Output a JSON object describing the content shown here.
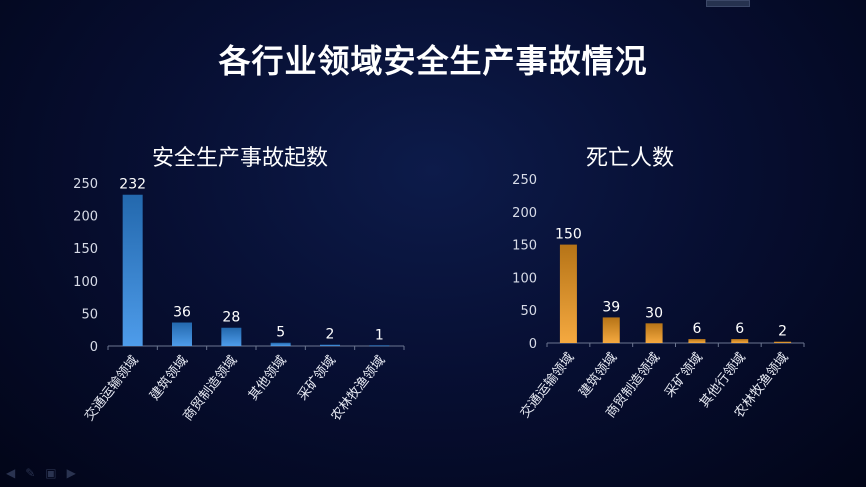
{
  "page_title": "各行业领域安全生产事故情况",
  "chart_data": [
    {
      "type": "bar",
      "title": "安全生产事故起数",
      "categories": [
        "交通运输领域",
        "建筑领域",
        "商贸制造领域",
        "其他领域",
        "采矿领域",
        "农林牧渔领域"
      ],
      "values": [
        232,
        36,
        28,
        5,
        2,
        1
      ],
      "ylim": [
        0,
        250
      ],
      "yticks": [
        0,
        50,
        100,
        150,
        200,
        250
      ],
      "bar_color": "#2f8be6",
      "grid": false
    },
    {
      "type": "bar",
      "title": "死亡人数",
      "categories": [
        "交通运输领域",
        "建筑领域",
        "商贸制造领域",
        "采矿领域",
        "其他行领域",
        "农林牧渔领域"
      ],
      "values": [
        150,
        39,
        30,
        6,
        6,
        2
      ],
      "ylim": [
        0,
        250
      ],
      "yticks": [
        0,
        50,
        100,
        150,
        200,
        250
      ],
      "bar_color": "#f39a1e",
      "grid": false
    }
  ],
  "nav_icons": [
    "arrow-left-icon",
    "pencil-icon",
    "screen-icon",
    "arrow-right-icon"
  ]
}
